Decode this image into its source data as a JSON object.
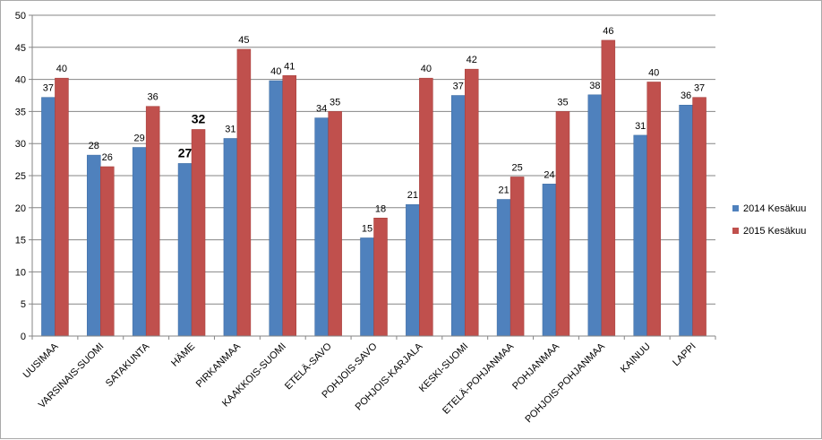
{
  "chart_data": {
    "type": "bar",
    "categories": [
      "UUSIMAA",
      "VARSINAIS-SUOMI",
      "SATAKUNTA",
      "HÄME",
      "PIRKANMAA",
      "KAAKKOIS-SUOMI",
      "ETELÄ-SAVO",
      "POHJOIS-SAVO",
      "POHJOIS-KARJALA",
      "KESKI-SUOMI",
      "ETELÄ-POHJANMAA",
      "POHJANMAA",
      "POHJOIS-POHJANMAA",
      "KAINUU",
      "LAPPI"
    ],
    "series": [
      {
        "name": "2014 Kesäkuu",
        "color": "#4f81bd",
        "values": [
          37.2,
          28.2,
          29.4,
          26.9,
          30.8,
          39.8,
          34.0,
          15.3,
          20.5,
          37.5,
          21.3,
          23.7,
          37.6,
          31.3,
          36.0
        ],
        "labels": [
          "37",
          "28",
          "29",
          "27",
          "31",
          "40",
          "34",
          "15",
          "21",
          "37",
          "21",
          "24",
          "38",
          "31",
          "36"
        ],
        "label_bold": [
          false,
          false,
          false,
          true,
          false,
          false,
          false,
          false,
          false,
          false,
          false,
          false,
          false,
          false,
          false
        ]
      },
      {
        "name": "2015 Kesäkuu",
        "color": "#c0504d",
        "values": [
          40.2,
          26.4,
          35.8,
          32.2,
          44.7,
          40.6,
          35.0,
          18.4,
          40.2,
          41.6,
          24.8,
          35.0,
          46.1,
          39.6,
          37.2
        ],
        "labels": [
          "40",
          "26",
          "36",
          "32",
          "45",
          "41",
          "35",
          "18",
          "40",
          "42",
          "25",
          "35",
          "46",
          "40",
          "37"
        ],
        "label_bold": [
          false,
          false,
          false,
          true,
          false,
          false,
          false,
          false,
          false,
          false,
          false,
          false,
          false,
          false,
          false
        ]
      }
    ],
    "yticks": [
      "0",
      "5",
      "10",
      "15",
      "20",
      "25",
      "30",
      "35",
      "40",
      "45",
      "50"
    ],
    "ylim": [
      0,
      50
    ],
    "grid": true,
    "legend": "right",
    "title": "",
    "xlabel": "",
    "ylabel": ""
  }
}
